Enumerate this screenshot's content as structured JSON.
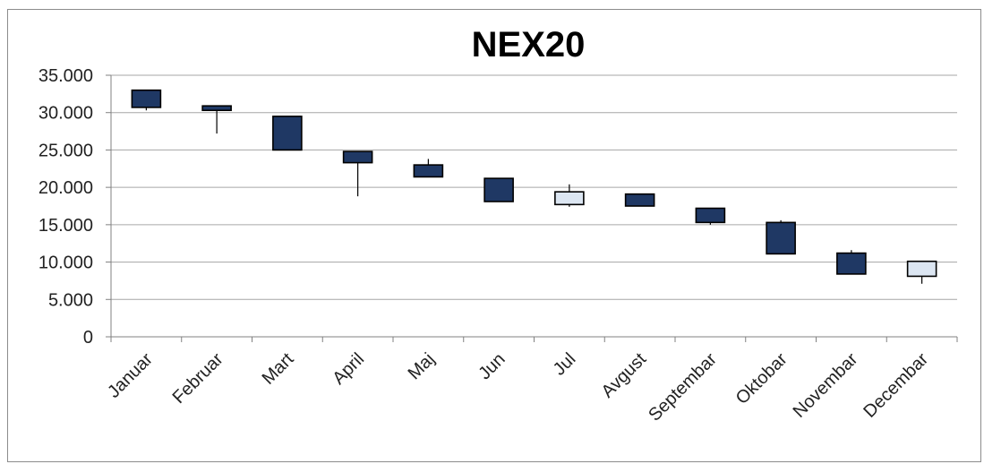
{
  "chart_data": {
    "type": "candlestick",
    "title": "NEX20",
    "xlabel": "",
    "ylabel": "",
    "ylim": [
      0,
      35000
    ],
    "yticks": [
      0,
      5000,
      10000,
      15000,
      20000,
      25000,
      30000,
      35000
    ],
    "ytick_labels": [
      "0",
      "5.000",
      "10.000",
      "15.000",
      "20.000",
      "25.000",
      "30.000",
      "35.000"
    ],
    "grid": true,
    "legend": "none",
    "colors": {
      "down": "#1f3864",
      "up": "#dce6f2",
      "outline": "#000000",
      "grid": "#a6a6a6"
    },
    "categories": [
      "Januar",
      "Februar",
      "Mart",
      "April",
      "Maj",
      "Jun",
      "Jul",
      "Avgust",
      "Septembar",
      "Oktobar",
      "Novembar",
      "Decembar"
    ],
    "candles": [
      {
        "open": 33000,
        "high": 33000,
        "low": 30300,
        "close": 30700
      },
      {
        "open": 30900,
        "high": 30900,
        "low": 27200,
        "close": 30300
      },
      {
        "open": 29500,
        "high": 29500,
        "low": 25000,
        "close": 25000
      },
      {
        "open": 24800,
        "high": 24800,
        "low": 18800,
        "close": 23300
      },
      {
        "open": 23000,
        "high": 23800,
        "low": 21400,
        "close": 21400
      },
      {
        "open": 21200,
        "high": 21200,
        "low": 18100,
        "close": 18100
      },
      {
        "open": 17700,
        "high": 20400,
        "low": 17400,
        "close": 19400
      },
      {
        "open": 19100,
        "high": 19100,
        "low": 17500,
        "close": 17500
      },
      {
        "open": 17200,
        "high": 17200,
        "low": 15000,
        "close": 15300
      },
      {
        "open": 15300,
        "high": 15600,
        "low": 11100,
        "close": 11100
      },
      {
        "open": 11200,
        "high": 11600,
        "low": 8400,
        "close": 8400
      },
      {
        "open": 8100,
        "high": 10100,
        "low": 7100,
        "close": 10100
      }
    ]
  }
}
